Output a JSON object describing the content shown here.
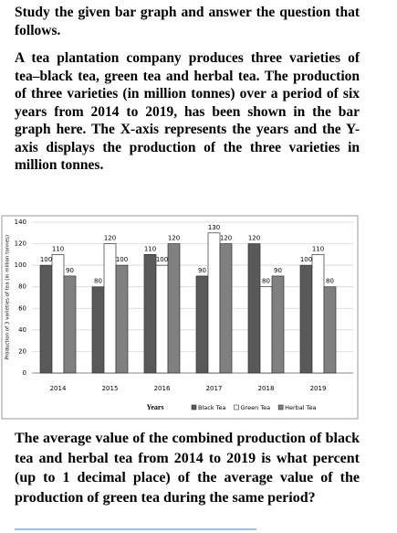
{
  "intro": "Study the given bar graph and answer the question that follows.",
  "description": "A tea plantation company produces three varieties of tea–black tea, green tea and herbal tea. The production of three varieties (in million tonnes) over a period of six years from 2014 to 2019, has been shown in the bar graph here. The X-axis represents the years and the Y-axis displays the production of the three varieties in million tonnes.",
  "chart_data": {
    "type": "bar",
    "x_label": "Years",
    "y_label": "Production of 3 varieties of tea (in million tonnes)",
    "categories": [
      "2014",
      "2015",
      "2016",
      "2017",
      "2018",
      "2019"
    ],
    "series": [
      {
        "name": "Black Tea",
        "color": "#595959",
        "values": [
          100,
          80,
          110,
          90,
          120,
          100
        ]
      },
      {
        "name": "Green Tea",
        "color": "#ffffff",
        "values": [
          110,
          120,
          100,
          130,
          80,
          110
        ]
      },
      {
        "name": "Herbal Tea",
        "color": "#808080",
        "values": [
          90,
          100,
          120,
          120,
          90,
          80
        ]
      }
    ],
    "ylim": [
      0,
      140
    ],
    "yticks": [
      0,
      20,
      40,
      60,
      80,
      100,
      120,
      140
    ],
    "grid": true,
    "legend": "bottom"
  },
  "question": "The average value of the combined production of black tea and herbal tea from 2014 to 2019 is what percent (up to 1 decimal place) of the average value of the production of green tea during the same period?"
}
